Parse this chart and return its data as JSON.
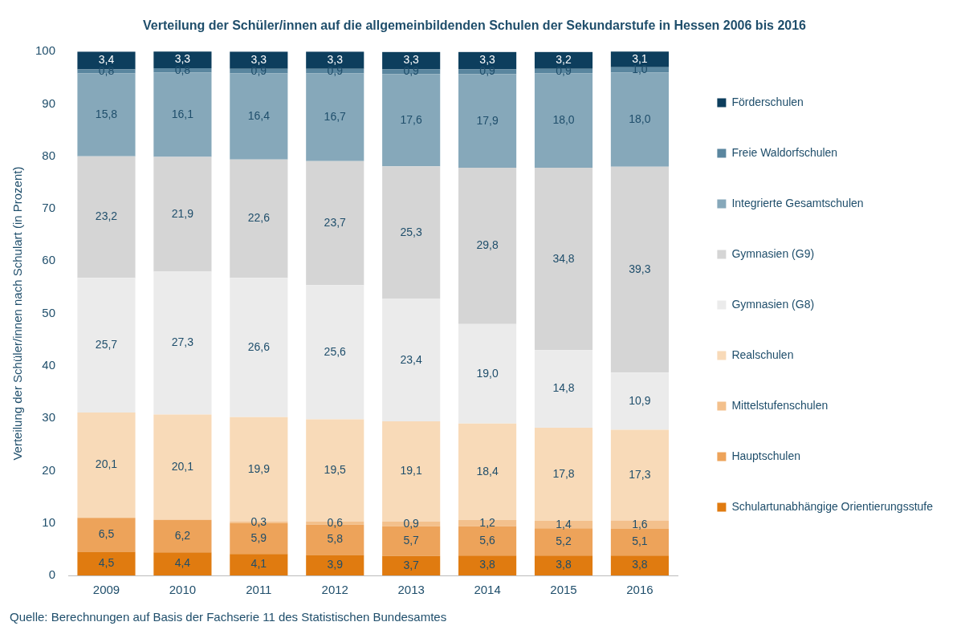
{
  "chart_data": {
    "type": "bar",
    "stacked": true,
    "title": "Verteilung der Schüler/innen auf die allgemeinbildenden Schulen der Sekundarstufe in Hessen 2006 bis 2016",
    "ylabel": "Verteilung der Schüler/innen nach Schulart (in Prozent)",
    "categories": [
      "2009",
      "2010",
      "2011",
      "2012",
      "2013",
      "2014",
      "2015",
      "2016"
    ],
    "ylim": [
      0,
      100
    ],
    "yticks": [
      0,
      10,
      20,
      30,
      40,
      50,
      60,
      70,
      80,
      90,
      100
    ],
    "grid": false,
    "legend": "right",
    "series": [
      {
        "name": "Schulartunabhängige Orientierungsstufe",
        "color": "#e07b10",
        "values": [
          4.5,
          4.4,
          4.1,
          3.9,
          3.7,
          3.8,
          3.8,
          3.8
        ],
        "value_labels": [
          "4,5",
          "4,4",
          "4,1",
          "3,9",
          "3,7",
          "3,8",
          "3,8",
          "3,8"
        ]
      },
      {
        "name": "Hauptschulen",
        "color": "#eda35a",
        "values": [
          6.5,
          6.2,
          5.9,
          5.8,
          5.7,
          5.6,
          5.2,
          5.1
        ],
        "value_labels": [
          "6,5",
          "6,2",
          "5,9",
          "5,8",
          "5,7",
          "5,6",
          "5,2",
          "5,1"
        ]
      },
      {
        "name": "Mittelstufenschulen",
        "color": "#f3c08c",
        "values": [
          null,
          null,
          0.3,
          0.6,
          0.9,
          1.2,
          1.4,
          1.6
        ],
        "value_labels": [
          null,
          null,
          "0,3",
          "0,6",
          "0,9",
          "1,2",
          "1,4",
          "1,6"
        ]
      },
      {
        "name": "Realschulen",
        "color": "#f8dab8",
        "values": [
          20.1,
          20.1,
          19.9,
          19.5,
          19.1,
          18.4,
          17.8,
          17.3
        ],
        "value_labels": [
          "20,1",
          "20,1",
          "19,9",
          "19,5",
          "19,1",
          "18,4",
          "17,8",
          "17,3"
        ]
      },
      {
        "name": "Gymnasien (G8)",
        "color": "#ebebeb",
        "values": [
          25.7,
          27.3,
          26.6,
          25.6,
          23.4,
          19.0,
          14.8,
          10.9
        ],
        "value_labels": [
          "25,7",
          "27,3",
          "26,6",
          "25,6",
          "23,4",
          "19,0",
          "14,8",
          "10,9"
        ]
      },
      {
        "name": "Gymnasien (G9)",
        "color": "#d5d5d5",
        "values": [
          23.2,
          21.9,
          22.6,
          23.7,
          25.3,
          29.8,
          34.8,
          39.3
        ],
        "value_labels": [
          "23,2",
          "21,9",
          "22,6",
          "23,7",
          "25,3",
          "29,8",
          "34,8",
          "39,3"
        ]
      },
      {
        "name": "Integrierte Gesamtschulen",
        "color": "#86a8ba",
        "values": [
          15.8,
          16.1,
          16.4,
          16.7,
          17.6,
          17.9,
          18.0,
          18.0
        ],
        "value_labels": [
          "15,8",
          "16,1",
          "16,4",
          "16,7",
          "17,6",
          "17,9",
          "18,0",
          "18,0"
        ]
      },
      {
        "name": "Freie Waldorfschulen",
        "color": "#5a869f",
        "values": [
          0.8,
          0.8,
          0.9,
          0.9,
          0.9,
          0.9,
          0.9,
          1.0
        ],
        "value_labels": [
          "0,8",
          "0,8",
          "0,9",
          "0,9",
          "0,9",
          "0,9",
          "0,9",
          "1,0"
        ]
      },
      {
        "name": "Förderschulen",
        "color": "#0d3e5d",
        "values": [
          3.4,
          3.3,
          3.3,
          3.3,
          3.3,
          3.3,
          3.2,
          3.1
        ],
        "value_labels": [
          "3,4",
          "3,3",
          "3,3",
          "3,3",
          "3,3",
          "3,3",
          "3,2",
          "3,1"
        ]
      }
    ],
    "annotations": [
      "Quelle: Berechnungen auf Basis der Fachserie 11 des Statistischen Bundesamtes"
    ]
  }
}
